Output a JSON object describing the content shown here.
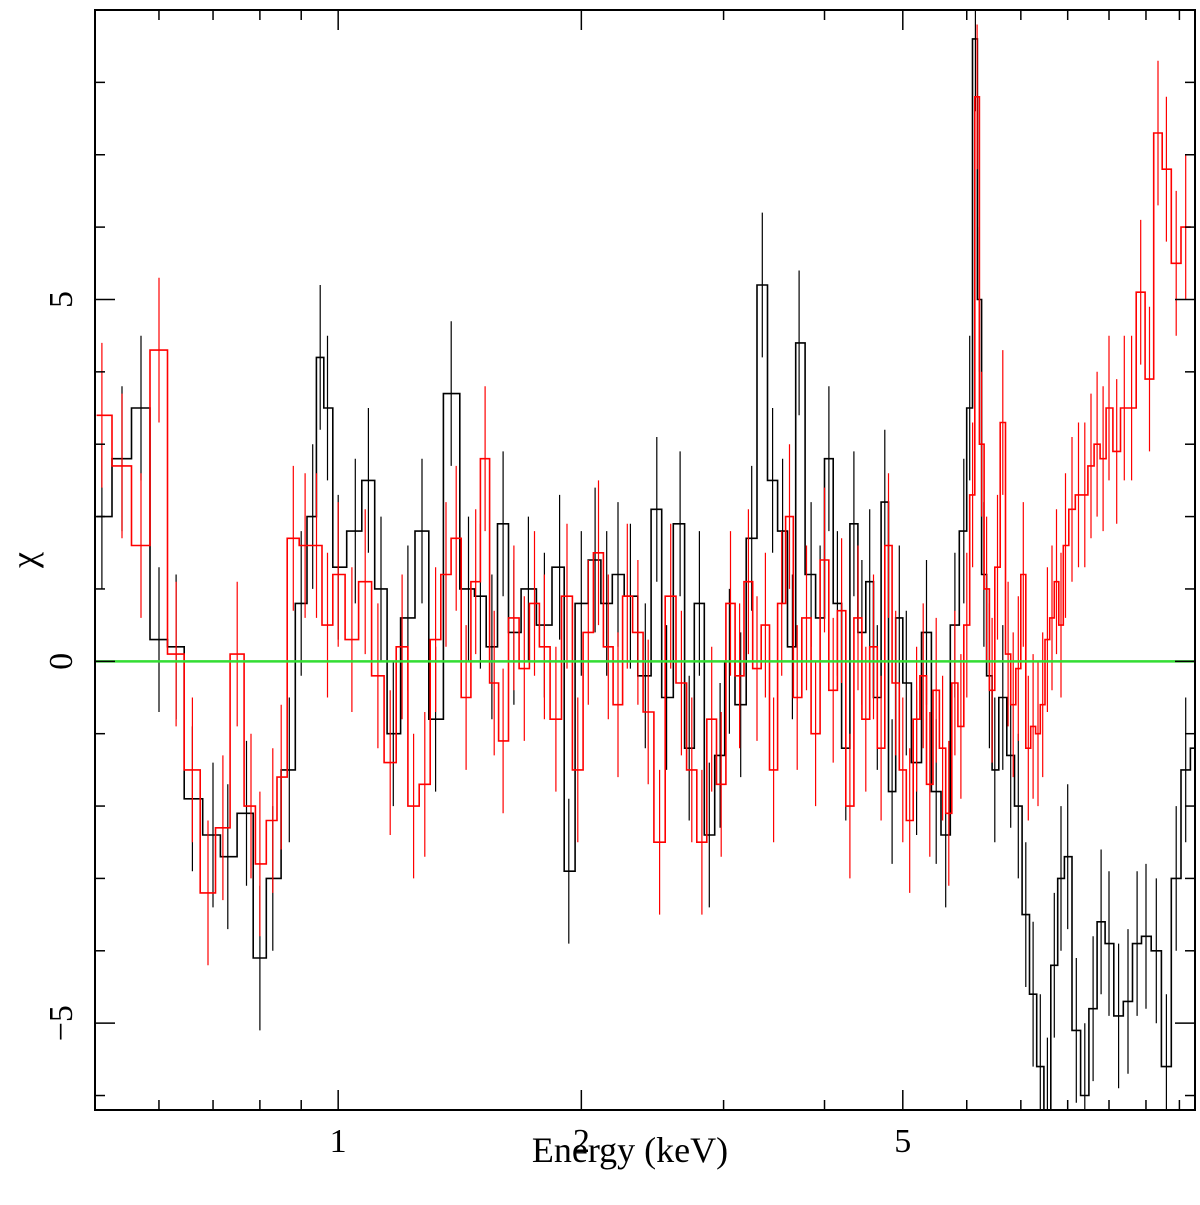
{
  "chart_data": {
    "type": "line",
    "xlabel": "Energy (keV)",
    "ylabel": "χ",
    "xscale": "log",
    "xlim": [
      0.5,
      11.5
    ],
    "ylim": [
      -6.2,
      9.0
    ],
    "xticks": [
      {
        "value": 1,
        "label": "1"
      },
      {
        "value": 2,
        "label": "2"
      },
      {
        "value": 5,
        "label": "5"
      }
    ],
    "yticks": [
      {
        "value": -5,
        "label": "−5"
      },
      {
        "value": 0,
        "label": "0"
      },
      {
        "value": 5,
        "label": "5"
      }
    ],
    "grid": false,
    "legend": "none",
    "reference_line": {
      "y": 0,
      "color": "#33dd33"
    },
    "series": [
      {
        "color": "#000000",
        "points": [
          [
            0.51,
            2.0
          ],
          [
            0.54,
            2.8
          ],
          [
            0.57,
            3.5
          ],
          [
            0.6,
            0.3
          ],
          [
            0.63,
            0.2
          ],
          [
            0.66,
            -1.9
          ],
          [
            0.7,
            -2.4
          ],
          [
            0.73,
            -2.7
          ],
          [
            0.77,
            -2.1
          ],
          [
            0.8,
            -4.1
          ],
          [
            0.83,
            -3.0
          ],
          [
            0.87,
            -1.5
          ],
          [
            0.9,
            0.8
          ],
          [
            0.93,
            2.0
          ],
          [
            0.95,
            4.2
          ],
          [
            0.97,
            3.5
          ],
          [
            1.0,
            1.3
          ],
          [
            1.05,
            1.8
          ],
          [
            1.09,
            2.5
          ],
          [
            1.13,
            1.0
          ],
          [
            1.17,
            -1.0
          ],
          [
            1.22,
            0.6
          ],
          [
            1.27,
            1.8
          ],
          [
            1.32,
            -0.8
          ],
          [
            1.38,
            3.7
          ],
          [
            1.45,
            1.0
          ],
          [
            1.5,
            0.9
          ],
          [
            1.55,
            0.2
          ],
          [
            1.6,
            1.9
          ],
          [
            1.65,
            0.4
          ],
          [
            1.72,
            1.0
          ],
          [
            1.8,
            0.5
          ],
          [
            1.88,
            1.3
          ],
          [
            1.93,
            -2.9
          ],
          [
            2.0,
            0.8
          ],
          [
            2.08,
            1.4
          ],
          [
            2.15,
            0.8
          ],
          [
            2.22,
            1.2
          ],
          [
            2.3,
            0.9
          ],
          [
            2.4,
            -0.2
          ],
          [
            2.48,
            2.1
          ],
          [
            2.55,
            -0.5
          ],
          [
            2.65,
            1.9
          ],
          [
            2.72,
            -1.2
          ],
          [
            2.8,
            0.8
          ],
          [
            2.88,
            -2.4
          ],
          [
            2.97,
            -1.3
          ],
          [
            3.05,
            0.0
          ],
          [
            3.15,
            -0.6
          ],
          [
            3.25,
            1.7
          ],
          [
            3.35,
            5.2
          ],
          [
            3.45,
            2.5
          ],
          [
            3.55,
            1.8
          ],
          [
            3.65,
            0.2
          ],
          [
            3.72,
            4.4
          ],
          [
            3.85,
            1.2
          ],
          [
            3.95,
            0.6
          ],
          [
            4.05,
            2.8
          ],
          [
            4.15,
            0.8
          ],
          [
            4.25,
            -1.2
          ],
          [
            4.35,
            1.9
          ],
          [
            4.45,
            0.4
          ],
          [
            4.55,
            1.1
          ],
          [
            4.65,
            -0.5
          ],
          [
            4.75,
            2.2
          ],
          [
            4.85,
            -1.8
          ],
          [
            4.95,
            0.6
          ],
          [
            5.05,
            -0.3
          ],
          [
            5.2,
            -1.4
          ],
          [
            5.35,
            0.4
          ],
          [
            5.5,
            -1.8
          ],
          [
            5.65,
            -2.4
          ],
          [
            5.8,
            0.5
          ],
          [
            5.95,
            1.8
          ],
          [
            6.05,
            3.5
          ],
          [
            6.15,
            8.6
          ],
          [
            6.22,
            5.0
          ],
          [
            6.3,
            1.2
          ],
          [
            6.4,
            -0.2
          ],
          [
            6.5,
            -1.5
          ],
          [
            6.65,
            -0.5
          ],
          [
            6.8,
            -1.3
          ],
          [
            6.95,
            -2.0
          ],
          [
            7.1,
            -3.5
          ],
          [
            7.25,
            -4.6
          ],
          [
            7.4,
            -5.6
          ],
          [
            7.55,
            -6.2
          ],
          [
            7.7,
            -4.2
          ],
          [
            7.85,
            -3.0
          ],
          [
            8.0,
            -2.7
          ],
          [
            8.2,
            -5.1
          ],
          [
            8.4,
            -6.0
          ],
          [
            8.6,
            -4.8
          ],
          [
            8.8,
            -3.6
          ],
          [
            9.0,
            -3.9
          ],
          [
            9.25,
            -4.9
          ],
          [
            9.5,
            -4.7
          ],
          [
            9.75,
            -3.9
          ],
          [
            10.0,
            -3.8
          ],
          [
            10.3,
            -4.0
          ],
          [
            10.6,
            -5.6
          ],
          [
            10.9,
            -3.0
          ],
          [
            11.2,
            -1.5
          ],
          [
            11.5,
            -1.2
          ]
        ]
      },
      {
        "color": "#ff0000",
        "points": [
          [
            0.51,
            3.4
          ],
          [
            0.54,
            2.7
          ],
          [
            0.57,
            1.6
          ],
          [
            0.6,
            4.3
          ],
          [
            0.63,
            0.1
          ],
          [
            0.66,
            -1.5
          ],
          [
            0.69,
            -3.2
          ],
          [
            0.72,
            -2.3
          ],
          [
            0.75,
            0.1
          ],
          [
            0.78,
            -2.0
          ],
          [
            0.8,
            -2.8
          ],
          [
            0.83,
            -2.2
          ],
          [
            0.85,
            -1.6
          ],
          [
            0.88,
            1.7
          ],
          [
            0.91,
            1.6
          ],
          [
            0.94,
            1.6
          ],
          [
            0.97,
            0.5
          ],
          [
            1.0,
            1.2
          ],
          [
            1.04,
            0.3
          ],
          [
            1.08,
            1.1
          ],
          [
            1.12,
            -0.2
          ],
          [
            1.16,
            -1.4
          ],
          [
            1.2,
            0.2
          ],
          [
            1.24,
            -2.0
          ],
          [
            1.28,
            -1.7
          ],
          [
            1.32,
            0.3
          ],
          [
            1.36,
            1.2
          ],
          [
            1.4,
            1.7
          ],
          [
            1.44,
            -0.5
          ],
          [
            1.48,
            1.1
          ],
          [
            1.52,
            2.8
          ],
          [
            1.56,
            -0.3
          ],
          [
            1.6,
            -1.1
          ],
          [
            1.65,
            0.6
          ],
          [
            1.7,
            -0.1
          ],
          [
            1.75,
            0.8
          ],
          [
            1.8,
            0.2
          ],
          [
            1.86,
            -0.8
          ],
          [
            1.92,
            0.9
          ],
          [
            1.98,
            -1.5
          ],
          [
            2.04,
            0.4
          ],
          [
            2.1,
            1.5
          ],
          [
            2.16,
            0.2
          ],
          [
            2.22,
            -0.6
          ],
          [
            2.28,
            0.9
          ],
          [
            2.35,
            0.4
          ],
          [
            2.42,
            -0.7
          ],
          [
            2.5,
            -2.5
          ],
          [
            2.58,
            0.9
          ],
          [
            2.66,
            -0.3
          ],
          [
            2.74,
            -1.5
          ],
          [
            2.82,
            -2.5
          ],
          [
            2.9,
            -0.8
          ],
          [
            2.98,
            -1.7
          ],
          [
            3.06,
            0.8
          ],
          [
            3.14,
            -0.2
          ],
          [
            3.22,
            1.1
          ],
          [
            3.3,
            -0.1
          ],
          [
            3.38,
            0.5
          ],
          [
            3.46,
            -1.5
          ],
          [
            3.54,
            0.8
          ],
          [
            3.62,
            2.0
          ],
          [
            3.7,
            -0.5
          ],
          [
            3.8,
            0.6
          ],
          [
            3.9,
            -1.0
          ],
          [
            4.0,
            1.4
          ],
          [
            4.1,
            -0.4
          ],
          [
            4.2,
            0.7
          ],
          [
            4.3,
            -2.0
          ],
          [
            4.4,
            0.6
          ],
          [
            4.5,
            -0.8
          ],
          [
            4.6,
            0.2
          ],
          [
            4.7,
            -1.2
          ],
          [
            4.8,
            1.6
          ],
          [
            4.9,
            -0.3
          ],
          [
            5.0,
            -1.5
          ],
          [
            5.1,
            -2.2
          ],
          [
            5.2,
            -0.8
          ],
          [
            5.3,
            -0.2
          ],
          [
            5.4,
            -1.7
          ],
          [
            5.5,
            -0.4
          ],
          [
            5.6,
            -1.2
          ],
          [
            5.7,
            -2.1
          ],
          [
            5.8,
            -0.3
          ],
          [
            5.9,
            -0.9
          ],
          [
            6.0,
            0.5
          ],
          [
            6.1,
            2.3
          ],
          [
            6.18,
            7.8
          ],
          [
            6.26,
            3.0
          ],
          [
            6.35,
            1.0
          ],
          [
            6.45,
            -0.4
          ],
          [
            6.55,
            1.3
          ],
          [
            6.65,
            3.3
          ],
          [
            6.75,
            0.1
          ],
          [
            6.85,
            -0.6
          ],
          [
            6.95,
            -0.1
          ],
          [
            7.05,
            1.2
          ],
          [
            7.15,
            -1.2
          ],
          [
            7.25,
            -0.9
          ],
          [
            7.35,
            -1.0
          ],
          [
            7.45,
            -0.6
          ],
          [
            7.55,
            0.3
          ],
          [
            7.65,
            0.6
          ],
          [
            7.75,
            1.1
          ],
          [
            7.85,
            0.5
          ],
          [
            7.95,
            1.6
          ],
          [
            8.1,
            2.1
          ],
          [
            8.25,
            2.3
          ],
          [
            8.4,
            2.3
          ],
          [
            8.55,
            2.7
          ],
          [
            8.7,
            3.0
          ],
          [
            8.85,
            2.8
          ],
          [
            9.0,
            3.5
          ],
          [
            9.2,
            2.9
          ],
          [
            9.4,
            3.5
          ],
          [
            9.6,
            3.5
          ],
          [
            9.85,
            5.1
          ],
          [
            10.1,
            3.9
          ],
          [
            10.35,
            7.3
          ],
          [
            10.6,
            6.8
          ],
          [
            10.9,
            5.5
          ],
          [
            11.2,
            6.0
          ]
        ]
      }
    ]
  }
}
